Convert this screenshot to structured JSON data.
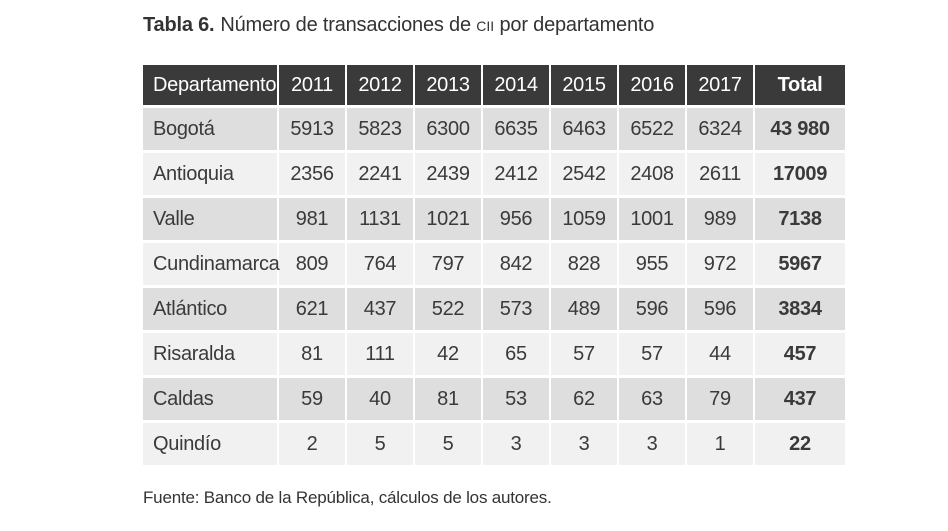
{
  "caption": {
    "label": "Tabla 6.",
    "text_before": "Número de transacciones de ",
    "abbrev": "CII",
    "text_after": " por departamento"
  },
  "table": {
    "headers": [
      "Departamento",
      "2011",
      "2012",
      "2013",
      "2014",
      "2015",
      "2016",
      "2017",
      "Total"
    ],
    "rows": [
      [
        "Bogotá",
        "5913",
        "5823",
        "6300",
        "6635",
        "6463",
        "6522",
        "6324",
        "43 980"
      ],
      [
        "Antioquia",
        "2356",
        "2241",
        "2439",
        "2412",
        "2542",
        "2408",
        "2611",
        "17009"
      ],
      [
        "Valle",
        "981",
        "1131",
        "1021",
        "956",
        "1059",
        "1001",
        "989",
        "7138"
      ],
      [
        "Cundinamarca",
        "809",
        "764",
        "797",
        "842",
        "828",
        "955",
        "972",
        "5967"
      ],
      [
        "Atlántico",
        "621",
        "437",
        "522",
        "573",
        "489",
        "596",
        "596",
        "3834"
      ],
      [
        "Risaralda",
        "81",
        "111",
        "42",
        "65",
        "57",
        "57",
        "44",
        "457"
      ],
      [
        "Caldas",
        "59",
        "40",
        "81",
        "53",
        "62",
        "63",
        "79",
        "437"
      ],
      [
        "Quindío",
        "2",
        "5",
        "5",
        "3",
        "3",
        "3",
        "1",
        "22"
      ]
    ]
  },
  "source": "Fuente: Banco de la República, cálculos de los autores."
}
